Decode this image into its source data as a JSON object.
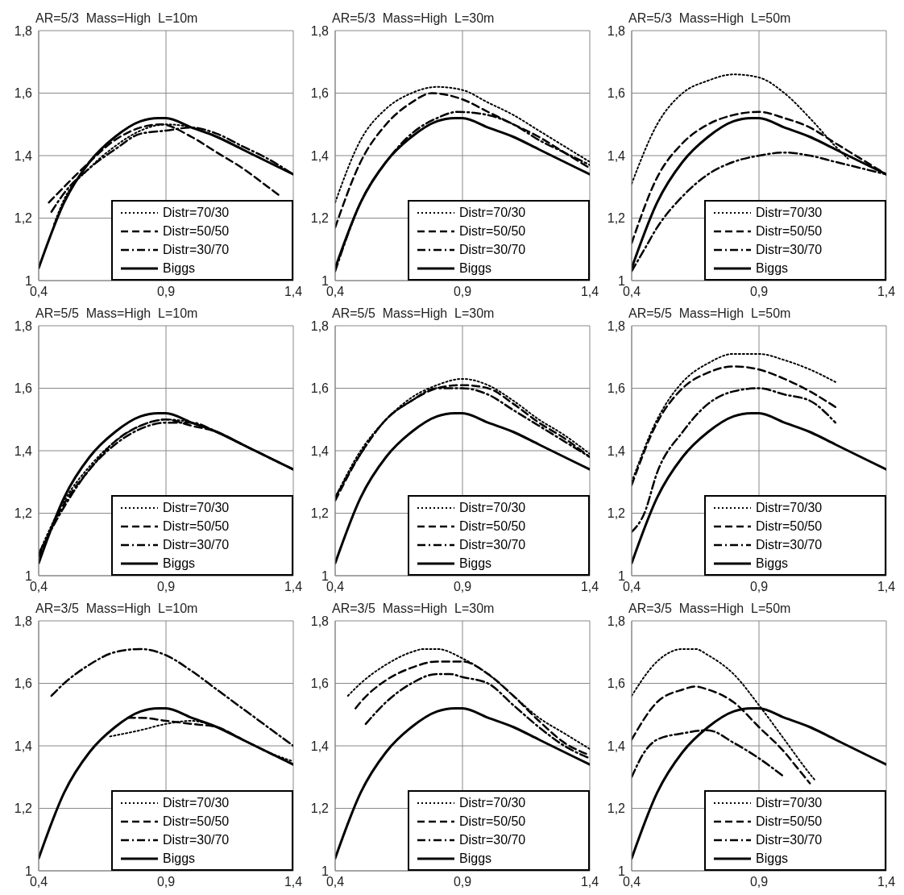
{
  "chart_data": [
    {
      "type": "line",
      "title": "AR=5/3  Mass=High  L=10m",
      "xlim": [
        0.4,
        1.4
      ],
      "xticks": [
        {
          "value": 0.4,
          "label": "0,4"
        },
        {
          "value": 0.9,
          "label": "0,9"
        },
        {
          "value": 1.4,
          "label": "1,4"
        }
      ],
      "ylim": [
        1,
        1.8
      ],
      "yticks": [
        {
          "value": 1,
          "label": "1"
        },
        {
          "value": 1.2,
          "label": "1,2"
        },
        {
          "value": 1.4,
          "label": "1,4"
        },
        {
          "value": 1.6,
          "label": "1,6"
        },
        {
          "value": 1.8,
          "label": "1,8"
        }
      ],
      "grid": true,
      "legend": "bottom right",
      "series": [
        {
          "name": "Distr=70/30",
          "color": "#000000",
          "line_style": "dotted",
          "x": [
            0.46,
            0.5,
            0.6,
            0.7,
            0.8,
            0.9,
            1.0,
            1.1,
            1.2,
            1.3,
            1.4
          ],
          "values": [
            1.18,
            1.26,
            1.36,
            1.43,
            1.48,
            1.5,
            1.49,
            1.46,
            1.42,
            1.38,
            1.34
          ]
        },
        {
          "name": "Distr=50/50",
          "color": "#000000",
          "line_style": "dashed",
          "x": [
            0.44,
            0.5,
            0.6,
            0.7,
            0.8,
            0.88,
            1.0,
            1.1,
            1.2,
            1.3,
            1.35
          ],
          "values": [
            1.25,
            1.3,
            1.38,
            1.45,
            1.49,
            1.5,
            1.46,
            1.41,
            1.36,
            1.3,
            1.27
          ]
        },
        {
          "name": "Distr=30/70",
          "color": "#000000",
          "line_style": "dashdot",
          "x": [
            0.45,
            0.5,
            0.6,
            0.7,
            0.8,
            0.9,
            1.0,
            1.1,
            1.2,
            1.3,
            1.4
          ],
          "values": [
            1.22,
            1.28,
            1.36,
            1.42,
            1.47,
            1.48,
            1.49,
            1.47,
            1.43,
            1.39,
            1.34
          ]
        },
        {
          "name": "Biggs",
          "color": "#000000",
          "line_style": "solid",
          "x": [
            0.4,
            0.5,
            0.6,
            0.7,
            0.8,
            0.87,
            0.9,
            1.0,
            1.1,
            1.2,
            1.3,
            1.4
          ],
          "values": [
            1.04,
            1.25,
            1.38,
            1.46,
            1.51,
            1.52,
            1.52,
            1.49,
            1.46,
            1.42,
            1.38,
            1.34
          ]
        }
      ]
    },
    {
      "type": "line",
      "title": "AR=5/3  Mass=High  L=30m",
      "xlim": [
        0.4,
        1.4
      ],
      "xticks": [
        {
          "value": 0.4,
          "label": "0,4"
        },
        {
          "value": 0.9,
          "label": "0,9"
        },
        {
          "value": 1.4,
          "label": "1,4"
        }
      ],
      "ylim": [
        1,
        1.8
      ],
      "yticks": [
        {
          "value": 1,
          "label": "1"
        },
        {
          "value": 1.2,
          "label": "1,2"
        },
        {
          "value": 1.4,
          "label": "1,4"
        },
        {
          "value": 1.6,
          "label": "1,6"
        },
        {
          "value": 1.8,
          "label": "1,8"
        }
      ],
      "grid": true,
      "legend": "bottom right",
      "series": [
        {
          "name": "Distr=70/30",
          "color": "#000000",
          "line_style": "dotted",
          "x": [
            0.4,
            0.5,
            0.6,
            0.7,
            0.8,
            0.9,
            1.0,
            1.1,
            1.2,
            1.3,
            1.4
          ],
          "values": [
            1.25,
            1.45,
            1.55,
            1.6,
            1.62,
            1.61,
            1.57,
            1.53,
            1.48,
            1.43,
            1.38
          ]
        },
        {
          "name": "Distr=50/50",
          "color": "#000000",
          "line_style": "dashed",
          "x": [
            0.4,
            0.5,
            0.6,
            0.7,
            0.78,
            0.9,
            1.0,
            1.1,
            1.2,
            1.3,
            1.4
          ],
          "values": [
            1.17,
            1.38,
            1.5,
            1.57,
            1.6,
            1.58,
            1.54,
            1.5,
            1.46,
            1.41,
            1.36
          ]
        },
        {
          "name": "Distr=30/70",
          "color": "#000000",
          "line_style": "dashdot",
          "x": [
            0.4,
            0.5,
            0.6,
            0.7,
            0.8,
            0.88,
            1.0,
            1.1,
            1.2,
            1.3,
            1.4
          ],
          "values": [
            1.03,
            1.25,
            1.38,
            1.47,
            1.52,
            1.54,
            1.53,
            1.5,
            1.45,
            1.41,
            1.37
          ]
        },
        {
          "name": "Biggs",
          "color": "#000000",
          "line_style": "solid",
          "x": [
            0.4,
            0.5,
            0.6,
            0.7,
            0.8,
            0.87,
            0.9,
            1.0,
            1.1,
            1.2,
            1.3,
            1.4
          ],
          "values": [
            1.04,
            1.25,
            1.38,
            1.46,
            1.51,
            1.52,
            1.52,
            1.49,
            1.46,
            1.42,
            1.38,
            1.34
          ]
        }
      ]
    },
    {
      "type": "line",
      "title": "AR=5/3  Mass=High  L=50m",
      "xlim": [
        0.4,
        1.4
      ],
      "xticks": [
        {
          "value": 0.4,
          "label": "0,4"
        },
        {
          "value": 0.9,
          "label": "0,9"
        },
        {
          "value": 1.4,
          "label": "1,4"
        }
      ],
      "ylim": [
        1,
        1.8
      ],
      "yticks": [
        {
          "value": 1,
          "label": "1"
        },
        {
          "value": 1.2,
          "label": "1,2"
        },
        {
          "value": 1.4,
          "label": "1,4"
        },
        {
          "value": 1.6,
          "label": "1,6"
        },
        {
          "value": 1.8,
          "label": "1,8"
        }
      ],
      "grid": true,
      "legend": "bottom right",
      "series": [
        {
          "name": "Distr=70/30",
          "color": "#000000",
          "line_style": "dotted",
          "x": [
            0.4,
            0.5,
            0.6,
            0.7,
            0.8,
            0.9,
            1.0,
            1.1,
            1.2,
            1.25
          ],
          "values": [
            1.31,
            1.5,
            1.6,
            1.64,
            1.66,
            1.65,
            1.6,
            1.52,
            1.43,
            1.39
          ]
        },
        {
          "name": "Distr=50/50",
          "color": "#000000",
          "line_style": "dashed",
          "x": [
            0.4,
            0.5,
            0.6,
            0.7,
            0.8,
            0.9,
            1.0,
            1.1,
            1.2,
            1.3,
            1.4
          ],
          "values": [
            1.12,
            1.33,
            1.44,
            1.5,
            1.53,
            1.54,
            1.52,
            1.49,
            1.44,
            1.39,
            1.34
          ]
        },
        {
          "name": "Distr=30/70",
          "color": "#000000",
          "line_style": "dashdot",
          "x": [
            0.4,
            0.45,
            0.5,
            0.6,
            0.7,
            0.8,
            0.9,
            1.0,
            1.1,
            1.2,
            1.3,
            1.4
          ],
          "values": [
            1.03,
            1.1,
            1.17,
            1.27,
            1.34,
            1.38,
            1.4,
            1.41,
            1.4,
            1.38,
            1.36,
            1.34
          ]
        },
        {
          "name": "Biggs",
          "color": "#000000",
          "line_style": "solid",
          "x": [
            0.4,
            0.5,
            0.6,
            0.7,
            0.8,
            0.87,
            0.9,
            1.0,
            1.1,
            1.2,
            1.3,
            1.4
          ],
          "values": [
            1.04,
            1.25,
            1.38,
            1.46,
            1.51,
            1.52,
            1.52,
            1.49,
            1.46,
            1.42,
            1.38,
            1.34
          ]
        }
      ]
    },
    {
      "type": "line",
      "title": "AR=5/5  Mass=High  L=10m",
      "xlim": [
        0.4,
        1.4
      ],
      "xticks": [
        {
          "value": 0.4,
          "label": "0,4"
        },
        {
          "value": 0.9,
          "label": "0,9"
        },
        {
          "value": 1.4,
          "label": "1,4"
        }
      ],
      "ylim": [
        1,
        1.8
      ],
      "yticks": [
        {
          "value": 1,
          "label": "1"
        },
        {
          "value": 1.2,
          "label": "1,2"
        },
        {
          "value": 1.4,
          "label": "1,4"
        },
        {
          "value": 1.6,
          "label": "1,6"
        },
        {
          "value": 1.8,
          "label": "1,8"
        }
      ],
      "grid": true,
      "legend": "bottom right",
      "series": [
        {
          "name": "Distr=70/30",
          "color": "#000000",
          "line_style": "dotted",
          "x": [
            0.4,
            0.5,
            0.6,
            0.7,
            0.8,
            0.9,
            1.0,
            1.1,
            1.2,
            1.3,
            1.4
          ],
          "values": [
            1.07,
            1.24,
            1.35,
            1.43,
            1.48,
            1.5,
            1.49,
            1.46,
            1.42,
            1.38,
            1.34
          ]
        },
        {
          "name": "Distr=50/50",
          "color": "#000000",
          "line_style": "dashed",
          "x": [
            0.4,
            0.5,
            0.6,
            0.7,
            0.8,
            0.9,
            1.0,
            1.1,
            1.2,
            1.3,
            1.4
          ],
          "values": [
            1.06,
            1.23,
            1.34,
            1.43,
            1.48,
            1.5,
            1.48,
            1.46,
            1.42,
            1.38,
            1.34
          ]
        },
        {
          "name": "Distr=30/70",
          "color": "#000000",
          "line_style": "dashdot",
          "x": [
            0.4,
            0.5,
            0.6,
            0.7,
            0.8,
            0.9,
            1.0,
            1.1,
            1.2,
            1.3,
            1.4
          ],
          "values": [
            1.07,
            1.22,
            1.34,
            1.42,
            1.47,
            1.49,
            1.49,
            1.46,
            1.42,
            1.38,
            1.34
          ]
        },
        {
          "name": "Biggs",
          "color": "#000000",
          "line_style": "solid",
          "x": [
            0.4,
            0.5,
            0.6,
            0.7,
            0.8,
            0.87,
            0.9,
            1.0,
            1.1,
            1.2,
            1.3,
            1.4
          ],
          "values": [
            1.04,
            1.25,
            1.38,
            1.46,
            1.51,
            1.52,
            1.52,
            1.49,
            1.46,
            1.42,
            1.38,
            1.34
          ]
        }
      ]
    },
    {
      "type": "line",
      "title": "AR=5/5  Mass=High  L=30m",
      "xlim": [
        0.4,
        1.4
      ],
      "xticks": [
        {
          "value": 0.4,
          "label": "0,4"
        },
        {
          "value": 0.9,
          "label": "0,9"
        },
        {
          "value": 1.4,
          "label": "1,4"
        }
      ],
      "ylim": [
        1,
        1.8
      ],
      "yticks": [
        {
          "value": 1,
          "label": "1"
        },
        {
          "value": 1.2,
          "label": "1,2"
        },
        {
          "value": 1.4,
          "label": "1,4"
        },
        {
          "value": 1.6,
          "label": "1,6"
        },
        {
          "value": 1.8,
          "label": "1,8"
        }
      ],
      "grid": true,
      "legend": "bottom right",
      "series": [
        {
          "name": "Distr=70/30",
          "color": "#000000",
          "line_style": "dotted",
          "x": [
            0.4,
            0.5,
            0.6,
            0.7,
            0.8,
            0.9,
            1.0,
            1.1,
            1.2,
            1.3,
            1.4
          ],
          "values": [
            1.25,
            1.4,
            1.5,
            1.57,
            1.61,
            1.63,
            1.61,
            1.56,
            1.5,
            1.45,
            1.39
          ]
        },
        {
          "name": "Distr=50/50",
          "color": "#000000",
          "line_style": "dashed",
          "x": [
            0.4,
            0.5,
            0.6,
            0.7,
            0.8,
            0.9,
            1.0,
            1.1,
            1.2,
            1.3,
            1.4
          ],
          "values": [
            1.24,
            1.39,
            1.5,
            1.56,
            1.6,
            1.61,
            1.6,
            1.55,
            1.49,
            1.44,
            1.38
          ]
        },
        {
          "name": "Distr=30/70",
          "color": "#000000",
          "line_style": "dashdot",
          "x": [
            0.4,
            0.5,
            0.6,
            0.7,
            0.8,
            0.9,
            1.0,
            1.1,
            1.2,
            1.3,
            1.4
          ],
          "values": [
            1.25,
            1.39,
            1.5,
            1.56,
            1.6,
            1.6,
            1.58,
            1.53,
            1.48,
            1.43,
            1.38
          ]
        },
        {
          "name": "Biggs",
          "color": "#000000",
          "line_style": "solid",
          "x": [
            0.4,
            0.5,
            0.6,
            0.7,
            0.8,
            0.87,
            0.9,
            1.0,
            1.1,
            1.2,
            1.3,
            1.4
          ],
          "values": [
            1.04,
            1.25,
            1.38,
            1.46,
            1.51,
            1.52,
            1.52,
            1.49,
            1.46,
            1.42,
            1.38,
            1.34
          ]
        }
      ]
    },
    {
      "type": "line",
      "title": "AR=5/5  Mass=High  L=50m",
      "xlim": [
        0.4,
        1.4
      ],
      "xticks": [
        {
          "value": 0.4,
          "label": "0,4"
        },
        {
          "value": 0.9,
          "label": "0,9"
        },
        {
          "value": 1.4,
          "label": "1,4"
        }
      ],
      "ylim": [
        1,
        1.8
      ],
      "yticks": [
        {
          "value": 1,
          "label": "1"
        },
        {
          "value": 1.2,
          "label": "1,2"
        },
        {
          "value": 1.4,
          "label": "1,4"
        },
        {
          "value": 1.6,
          "label": "1,6"
        },
        {
          "value": 1.8,
          "label": "1,8"
        }
      ],
      "grid": true,
      "legend": "bottom right",
      "series": [
        {
          "name": "Distr=70/30",
          "color": "#000000",
          "line_style": "dotted",
          "x": [
            0.4,
            0.5,
            0.6,
            0.7,
            0.8,
            0.9,
            1.0,
            1.1,
            1.2
          ],
          "values": [
            1.3,
            1.5,
            1.62,
            1.68,
            1.71,
            1.71,
            1.69,
            1.66,
            1.62
          ]
        },
        {
          "name": "Distr=50/50",
          "color": "#000000",
          "line_style": "dashed",
          "x": [
            0.4,
            0.5,
            0.6,
            0.7,
            0.8,
            0.9,
            1.0,
            1.1,
            1.2
          ],
          "values": [
            1.29,
            1.49,
            1.6,
            1.65,
            1.67,
            1.66,
            1.63,
            1.59,
            1.54
          ]
        },
        {
          "name": "Distr=30/70",
          "color": "#000000",
          "line_style": "dashdot",
          "x": [
            0.4,
            0.45,
            0.5,
            0.6,
            0.7,
            0.8,
            0.9,
            1.0,
            1.1,
            1.2
          ],
          "values": [
            1.14,
            1.2,
            1.33,
            1.46,
            1.55,
            1.59,
            1.6,
            1.58,
            1.56,
            1.49
          ]
        },
        {
          "name": "Biggs",
          "color": "#000000",
          "line_style": "solid",
          "x": [
            0.4,
            0.5,
            0.6,
            0.7,
            0.8,
            0.87,
            0.9,
            1.0,
            1.1,
            1.2,
            1.3,
            1.4
          ],
          "values": [
            1.04,
            1.25,
            1.38,
            1.46,
            1.51,
            1.52,
            1.52,
            1.49,
            1.46,
            1.42,
            1.38,
            1.34
          ]
        }
      ]
    },
    {
      "type": "line",
      "title": "AR=3/5  Mass=High  L=10m",
      "xlim": [
        0.4,
        1.4
      ],
      "xticks": [
        {
          "value": 0.4,
          "label": "0,4"
        },
        {
          "value": 0.9,
          "label": "0,9"
        },
        {
          "value": 1.4,
          "label": "1,4"
        }
      ],
      "ylim": [
        1,
        1.8
      ],
      "yticks": [
        {
          "value": 1,
          "label": "1"
        },
        {
          "value": 1.2,
          "label": "1,2"
        },
        {
          "value": 1.4,
          "label": "1,4"
        },
        {
          "value": 1.6,
          "label": "1,6"
        },
        {
          "value": 1.8,
          "label": "1,8"
        }
      ],
      "grid": true,
      "legend": "bottom right",
      "series": [
        {
          "name": "Distr=70/30",
          "color": "#000000",
          "line_style": "dotted",
          "x": [
            0.68,
            0.8,
            0.9,
            1.0,
            1.1,
            1.2,
            1.3,
            1.4
          ],
          "values": [
            1.43,
            1.45,
            1.47,
            1.48,
            1.46,
            1.42,
            1.38,
            1.35
          ]
        },
        {
          "name": "Distr=50/50",
          "color": "#000000",
          "line_style": "dashed",
          "x": [
            0.75,
            0.8,
            0.9,
            1.0,
            1.1,
            1.2,
            1.3,
            1.4
          ],
          "values": [
            1.49,
            1.49,
            1.48,
            1.47,
            1.46,
            1.42,
            1.38,
            1.34
          ]
        },
        {
          "name": "Distr=30/70",
          "color": "#000000",
          "line_style": "dashdot",
          "x": [
            0.45,
            0.5,
            0.6,
            0.7,
            0.8,
            0.9,
            1.0,
            1.1,
            1.2,
            1.3,
            1.4
          ],
          "values": [
            1.56,
            1.6,
            1.66,
            1.7,
            1.71,
            1.69,
            1.64,
            1.58,
            1.52,
            1.46,
            1.4
          ]
        },
        {
          "name": "Biggs",
          "color": "#000000",
          "line_style": "solid",
          "x": [
            0.4,
            0.5,
            0.6,
            0.7,
            0.8,
            0.87,
            0.9,
            1.0,
            1.1,
            1.2,
            1.3,
            1.4
          ],
          "values": [
            1.04,
            1.25,
            1.38,
            1.46,
            1.51,
            1.52,
            1.52,
            1.49,
            1.46,
            1.42,
            1.38,
            1.34
          ]
        }
      ]
    },
    {
      "type": "line",
      "title": "AR=3/5  Mass=High  L=30m",
      "xlim": [
        0.4,
        1.4
      ],
      "xticks": [
        {
          "value": 0.4,
          "label": "0,4"
        },
        {
          "value": 0.9,
          "label": "0,9"
        },
        {
          "value": 1.4,
          "label": "1,4"
        }
      ],
      "ylim": [
        1,
        1.8
      ],
      "yticks": [
        {
          "value": 1,
          "label": "1"
        },
        {
          "value": 1.2,
          "label": "1,2"
        },
        {
          "value": 1.4,
          "label": "1,4"
        },
        {
          "value": 1.6,
          "label": "1,6"
        },
        {
          "value": 1.8,
          "label": "1,8"
        }
      ],
      "grid": true,
      "legend": "bottom right",
      "series": [
        {
          "name": "Distr=70/30",
          "color": "#000000",
          "line_style": "dotted",
          "x": [
            0.45,
            0.5,
            0.6,
            0.7,
            0.75,
            0.8,
            0.9,
            1.0,
            1.1,
            1.2,
            1.3,
            1.4
          ],
          "values": [
            1.56,
            1.6,
            1.66,
            1.7,
            1.71,
            1.71,
            1.68,
            1.63,
            1.56,
            1.49,
            1.44,
            1.39
          ]
        },
        {
          "name": "Distr=50/50",
          "color": "#000000",
          "line_style": "dashed",
          "x": [
            0.48,
            0.5,
            0.6,
            0.7,
            0.8,
            0.9,
            1.0,
            1.1,
            1.2,
            1.3,
            1.4
          ],
          "values": [
            1.52,
            1.54,
            1.61,
            1.65,
            1.67,
            1.67,
            1.63,
            1.56,
            1.48,
            1.41,
            1.37
          ]
        },
        {
          "name": "Distr=30/70",
          "color": "#000000",
          "line_style": "dashdot",
          "x": [
            0.52,
            0.6,
            0.7,
            0.8,
            0.85,
            0.9,
            1.0,
            1.1,
            1.2,
            1.3,
            1.4
          ],
          "values": [
            1.47,
            1.54,
            1.6,
            1.63,
            1.63,
            1.62,
            1.6,
            1.53,
            1.46,
            1.4,
            1.36
          ]
        },
        {
          "name": "Biggs",
          "color": "#000000",
          "line_style": "solid",
          "x": [
            0.4,
            0.5,
            0.6,
            0.7,
            0.8,
            0.87,
            0.9,
            1.0,
            1.1,
            1.2,
            1.3,
            1.4
          ],
          "values": [
            1.04,
            1.25,
            1.38,
            1.46,
            1.51,
            1.52,
            1.52,
            1.49,
            1.46,
            1.42,
            1.38,
            1.34
          ]
        }
      ]
    },
    {
      "type": "line",
      "title": "AR=3/5  Mass=High  L=50m",
      "xlim": [
        0.4,
        1.4
      ],
      "xticks": [
        {
          "value": 0.4,
          "label": "0,4"
        },
        {
          "value": 0.9,
          "label": "0,9"
        },
        {
          "value": 1.4,
          "label": "1,4"
        }
      ],
      "ylim": [
        1,
        1.8
      ],
      "yticks": [
        {
          "value": 1,
          "label": "1"
        },
        {
          "value": 1.2,
          "label": "1,2"
        },
        {
          "value": 1.4,
          "label": "1,4"
        },
        {
          "value": 1.6,
          "label": "1,6"
        },
        {
          "value": 1.8,
          "label": "1,8"
        }
      ],
      "grid": true,
      "legend": "bottom right",
      "series": [
        {
          "name": "Distr=70/30",
          "color": "#000000",
          "line_style": "dotted",
          "x": [
            0.4,
            0.5,
            0.6,
            0.65,
            0.7,
            0.8,
            0.9,
            1.0,
            1.1,
            1.12
          ],
          "values": [
            1.56,
            1.67,
            1.71,
            1.71,
            1.69,
            1.63,
            1.53,
            1.42,
            1.31,
            1.29
          ]
        },
        {
          "name": "Distr=50/50",
          "color": "#000000",
          "line_style": "dashed",
          "x": [
            0.4,
            0.5,
            0.6,
            0.65,
            0.7,
            0.8,
            0.9,
            1.0,
            1.05,
            1.1
          ],
          "values": [
            1.42,
            1.54,
            1.58,
            1.59,
            1.58,
            1.54,
            1.46,
            1.38,
            1.33,
            1.28
          ]
        },
        {
          "name": "Distr=30/70",
          "color": "#000000",
          "line_style": "dashdot",
          "x": [
            0.4,
            0.45,
            0.5,
            0.6,
            0.7,
            0.8,
            0.9,
            1.0
          ],
          "values": [
            1.3,
            1.38,
            1.42,
            1.44,
            1.45,
            1.41,
            1.36,
            1.3
          ]
        },
        {
          "name": "Biggs",
          "color": "#000000",
          "line_style": "solid",
          "x": [
            0.4,
            0.5,
            0.6,
            0.7,
            0.8,
            0.87,
            0.9,
            1.0,
            1.1,
            1.2,
            1.3,
            1.4
          ],
          "values": [
            1.04,
            1.25,
            1.38,
            1.46,
            1.51,
            1.52,
            1.52,
            1.49,
            1.46,
            1.42,
            1.38,
            1.34
          ]
        }
      ]
    }
  ]
}
